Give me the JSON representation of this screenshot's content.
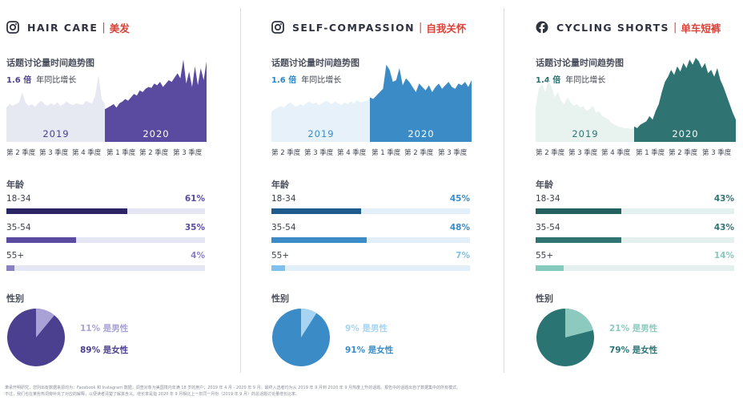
{
  "labels": {
    "trend_title": "话题讨论量时间趋势图",
    "yoy_suffix": "年同比增长",
    "age_title": "年龄",
    "gender_title": "性别",
    "quarters": [
      "第 2 季度",
      "第 3 季度",
      "第 4 季度",
      "第 1 季度",
      "第 2 季度",
      "第 3 季度"
    ],
    "year_a": "2019",
    "year_b": "2020"
  },
  "panels": [
    {
      "topic": "HAIR CARE",
      "separator": "|",
      "topic_zh": "美发",
      "icon": "instagram-icon",
      "growth": "1.6 倍",
      "colors": {
        "accent": "#4b3f8f",
        "dark": "#2b2566",
        "mid": "#5a4aa0",
        "light": "#8a80c4",
        "track": "#e4e7f3",
        "area2019": "#e6e8f2",
        "year2019": "#4b3f8f",
        "year2020": "#ffffff",
        "pie_male": "#a8a2d6",
        "pie_female": "#4b3f8f"
      },
      "age": [
        {
          "label": "18-34",
          "value": 61,
          "text": "61%"
        },
        {
          "label": "35-54",
          "value": 35,
          "text": "35%"
        },
        {
          "label": "55+",
          "value": 4,
          "text": "4%"
        }
      ],
      "gender": {
        "male": 11,
        "female": 89,
        "male_text": "11% 是男性",
        "female_text": "89% 是女性"
      }
    },
    {
      "topic": "SELF-COMPASSION",
      "separator": "|",
      "topic_zh": "自我关怀",
      "icon": "instagram-icon",
      "growth": "1.6 倍",
      "colors": {
        "accent": "#2f86c4",
        "dark": "#1f5a8c",
        "mid": "#3b8cc6",
        "light": "#7fc1ec",
        "track": "#e2eef8",
        "area2019": "#e6f1fa",
        "year2019": "#3b8cc6",
        "year2020": "#ffffff",
        "pie_male": "#a6d4f2",
        "pie_female": "#3b8cc6"
      },
      "age": [
        {
          "label": "18-34",
          "value": 45,
          "text": "45%"
        },
        {
          "label": "35-54",
          "value": 48,
          "text": "48%"
        },
        {
          "label": "55+",
          "value": 7,
          "text": "7%"
        }
      ],
      "gender": {
        "male": 9,
        "female": 91,
        "male_text": "9% 是男性",
        "female_text": "91% 是女性"
      }
    },
    {
      "topic": "CYCLING SHORTS",
      "separator": "|",
      "topic_zh": "单车短裤",
      "icon": "facebook-icon",
      "growth": "1.4 倍",
      "colors": {
        "accent": "#2a6e6e",
        "dark": "#24605f",
        "mid": "#2f7472",
        "light": "#86c9bd",
        "track": "#e3f0ee",
        "area2019": "#e8f2ef",
        "year2019": "#2f7472",
        "year2020": "#ffffff",
        "pie_male": "#8cc9bf",
        "pie_female": "#2a7474"
      },
      "age": [
        {
          "label": "18-34",
          "value": 43,
          "text": "43%"
        },
        {
          "label": "35-54",
          "value": 43,
          "text": "43%"
        },
        {
          "label": "55+",
          "value": 14,
          "text": "14%"
        }
      ],
      "gender": {
        "male": 21,
        "female": 79,
        "male_text": "21% 是男性",
        "female_text": "79% 是女性"
      }
    }
  ],
  "chart_data": [
    {
      "type": "area",
      "title": "话题讨论量时间趋势图",
      "topic": "HAIR CARE",
      "x_labels": [
        "第 2 季度",
        "第 3 季度",
        "第 4 季度",
        "第 1 季度",
        "第 2 季度",
        "第 3 季度"
      ],
      "series": [
        {
          "name": "2019",
          "values": [
            40,
            44,
            42,
            44,
            46,
            58,
            46,
            42,
            44,
            41,
            45,
            48,
            44,
            42,
            45,
            43,
            46,
            42,
            44,
            47,
            44,
            43,
            45,
            44,
            43,
            48,
            46,
            45,
            55,
            78,
            50,
            44
          ]
        },
        {
          "name": "2020",
          "values": [
            38,
            40,
            42,
            44,
            40,
            45,
            47,
            50,
            48,
            52,
            56,
            54,
            60,
            58,
            62,
            64,
            63,
            68,
            66,
            70,
            64,
            68,
            72,
            70,
            75,
            80,
            74,
            96,
            68,
            82,
            64,
            88,
            66,
            86,
            72,
            94
          ]
        }
      ],
      "ylim": [
        0,
        100
      ]
    },
    {
      "type": "area",
      "title": "话题讨论量时间趋势图",
      "topic": "SELF-COMPASSION",
      "x_labels": [
        "第 2 季度",
        "第 3 季度",
        "第 4 季度",
        "第 1 季度",
        "第 2 季度",
        "第 3 季度"
      ],
      "series": [
        {
          "name": "2019",
          "values": [
            35,
            38,
            40,
            42,
            40,
            44,
            46,
            43,
            41,
            44,
            42,
            45,
            47,
            44,
            46,
            43,
            45,
            48,
            46,
            44,
            47,
            45,
            43,
            46,
            44,
            47,
            45,
            49,
            46,
            47,
            48,
            50
          ]
        },
        {
          "name": "2020",
          "values": [
            52,
            50,
            54,
            58,
            62,
            90,
            84,
            70,
            72,
            86,
            66,
            74,
            70,
            64,
            58,
            68,
            64,
            60,
            66,
            58,
            64,
            68,
            62,
            66,
            70,
            64,
            62,
            68,
            66,
            70,
            64,
            72
          ]
        }
      ],
      "ylim": [
        0,
        100
      ]
    },
    {
      "type": "area",
      "title": "话题讨论量时间趋势图",
      "topic": "CYCLING SHORTS",
      "x_labels": [
        "第 2 季度",
        "第 3 季度",
        "第 4 季度",
        "第 1 季度",
        "第 2 季度",
        "第 3 季度"
      ],
      "series": [
        {
          "name": "2019",
          "values": [
            40,
            62,
            68,
            58,
            72,
            64,
            52,
            58,
            48,
            44,
            52,
            46,
            42,
            44,
            40,
            42,
            36,
            38,
            42,
            34,
            36,
            30,
            28,
            26,
            22,
            20,
            18,
            17,
            16,
            16,
            15,
            16
          ]
        },
        {
          "name": "2020",
          "values": [
            18,
            16,
            20,
            22,
            24,
            30,
            26,
            36,
            44,
            58,
            70,
            76,
            84,
            78,
            88,
            82,
            92,
            86,
            96,
            90,
            98,
            94,
            86,
            92,
            80,
            84,
            76,
            86,
            72,
            64,
            54,
            44,
            34,
            26
          ]
        }
      ],
      "ylim": [
        0,
        100
      ]
    }
  ],
  "footnote": [
    "秉承开明研究，您列出有数据来源均为：Facebook 和 Instagram 数据，调查对象为美国境内年满 18 岁的用户；2019 年 4 月 - 2020 年 9 月。最终入选者均为从 2019 年 9 月到 2020 年 9 月热度上升的话题。报告中的话题出自了数据集中的所有模式。",
    "不过，我们也在某些热词旁补充了对应的解释，以便读者清楚了解其含义。增长率是指 2020 年 9 月相比上一年同一月份（2019 年 9 月）的总话题讨论量增长比率。"
  ]
}
